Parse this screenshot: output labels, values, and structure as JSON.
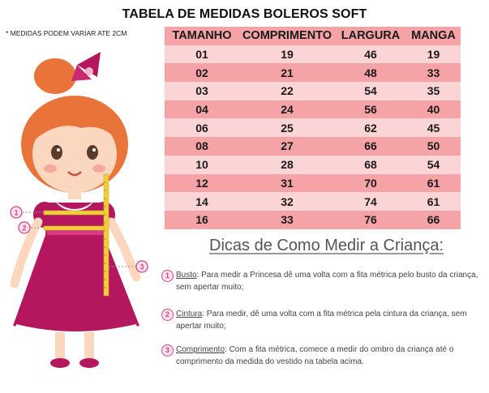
{
  "title": "TABELA DE MEDIDAS BOLEROS SOFT",
  "note": "* MEDIDAS PODEM VARIAR ATE 2CM",
  "table": {
    "headers": [
      "TAMANHO",
      "COMPRIMENTO",
      "LARGURA",
      "MANGA"
    ],
    "rows": [
      [
        "01",
        "19",
        "46",
        "19"
      ],
      [
        "02",
        "21",
        "48",
        "33"
      ],
      [
        "03",
        "22",
        "54",
        "35"
      ],
      [
        "04",
        "24",
        "56",
        "40"
      ],
      [
        "06",
        "25",
        "62",
        "45"
      ],
      [
        "08",
        "27",
        "66",
        "50"
      ],
      [
        "10",
        "28",
        "68",
        "54"
      ],
      [
        "12",
        "31",
        "70",
        "61"
      ],
      [
        "14",
        "32",
        "74",
        "61"
      ],
      [
        "16",
        "33",
        "76",
        "66"
      ]
    ]
  },
  "figure": {
    "markers": [
      "1",
      "2",
      "3"
    ]
  },
  "tips": {
    "title": "Dicas de Como Medir a Criança:",
    "items": [
      {
        "num": "1",
        "keyword": "Busto",
        "text": ": Para medir a Princesa dê uma volta com a fita métrica pelo busto da criança, sem apertar muito;"
      },
      {
        "num": "2",
        "keyword": "Cintura",
        "text": ": Para medir, dê uma volta com a fita métrica pela cintura da criança, sem apertar muito;"
      },
      {
        "num": "3",
        "keyword": "Comprimento",
        "text": ": Com a fita métrica, comece a medir do ombro da criança até o comprimento da medida do vestido na tabela acima."
      }
    ]
  },
  "colors": {
    "row_dark": "#f5a3a6",
    "row_light": "#fbd4d5",
    "dress": "#b5175f",
    "hair": "#e8743a",
    "marker": "#d6458a"
  }
}
